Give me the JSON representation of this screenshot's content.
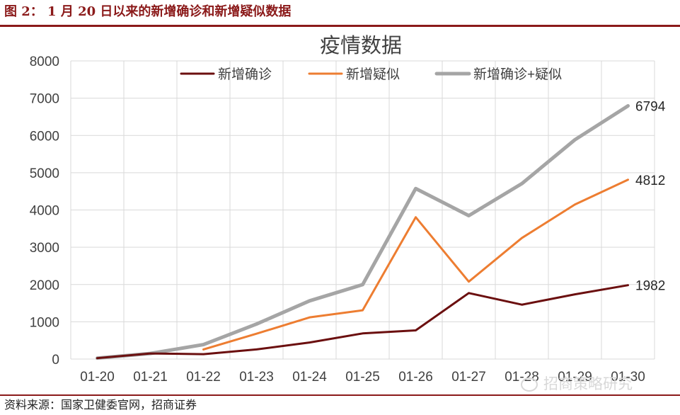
{
  "figure": {
    "title": "图 2： 1 月 20 日以来的新增确诊和新增疑似数据",
    "source": "资料来源：国家卫健委官网，招商证券",
    "watermark": "招商策略研究",
    "watermark_icon": "wechat-icon"
  },
  "chart_data": {
    "type": "line",
    "title": "疫情数据",
    "xlabel": "",
    "ylabel": "",
    "categories": [
      "01-20",
      "01-21",
      "01-22",
      "01-23",
      "01-24",
      "01-25",
      "01-26",
      "01-27",
      "01-28",
      "01-29",
      "01-30"
    ],
    "ylim": [
      0,
      8000
    ],
    "yticks": [
      0,
      1000,
      2000,
      3000,
      4000,
      5000,
      6000,
      7000,
      8000
    ],
    "grid": true,
    "legend_position": "top",
    "series": [
      {
        "name": "新增确诊",
        "color": "#6b0f0f",
        "values": [
          25,
          150,
          131,
          259,
          444,
          688,
          769,
          1771,
          1459,
          1737,
          1982
        ]
      },
      {
        "name": "新增疑似",
        "color": "#ed7d31",
        "values": [
          null,
          null,
          257,
          680,
          1118,
          1309,
          3806,
          2077,
          3248,
          4148,
          4812
        ]
      },
      {
        "name": "新增确诊+疑似",
        "color": "#a5a5a5",
        "values": [
          25,
          150,
          388,
          939,
          1562,
          1997,
          4575,
          3848,
          4707,
          5885,
          6794
        ]
      }
    ],
    "end_labels": [
      {
        "series": "新增确诊+疑似",
        "text": "6794"
      },
      {
        "series": "新增疑似",
        "text": "4812"
      },
      {
        "series": "新增确诊",
        "text": "1982"
      }
    ]
  }
}
